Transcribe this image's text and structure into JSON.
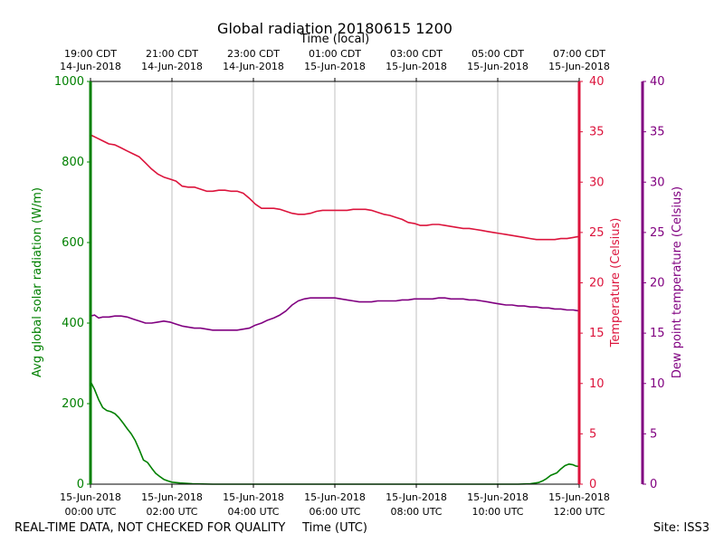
{
  "chart_data": {
    "type": "line",
    "title": "Global radiation 20180615 1200",
    "top_axis_label": "Time (local)",
    "xlabel": "Time (UTC)",
    "footer_left": "REAL-TIME DATA, NOT CHECKED FOR QUALITY",
    "footer_right": "Site: ISS3",
    "x_range_hours_utc": [
      0,
      12
    ],
    "top_ticks": [
      {
        "hour": 0,
        "line1": "19:00 CDT",
        "line2": "14-Jun-2018"
      },
      {
        "hour": 2,
        "line1": "21:00 CDT",
        "line2": "14-Jun-2018"
      },
      {
        "hour": 4,
        "line1": "23:00 CDT",
        "line2": "14-Jun-2018"
      },
      {
        "hour": 6,
        "line1": "01:00 CDT",
        "line2": "15-Jun-2018"
      },
      {
        "hour": 8,
        "line1": "03:00 CDT",
        "line2": "15-Jun-2018"
      },
      {
        "hour": 10,
        "line1": "05:00 CDT",
        "line2": "15-Jun-2018"
      },
      {
        "hour": 12,
        "line1": "07:00 CDT",
        "line2": "15-Jun-2018"
      }
    ],
    "bottom_ticks": [
      {
        "hour": 0,
        "line1": "15-Jun-2018",
        "line2": "00:00 UTC"
      },
      {
        "hour": 2,
        "line1": "15-Jun-2018",
        "line2": "02:00 UTC"
      },
      {
        "hour": 4,
        "line1": "15-Jun-2018",
        "line2": "04:00 UTC"
      },
      {
        "hour": 6,
        "line1": "15-Jun-2018",
        "line2": "06:00 UTC"
      },
      {
        "hour": 8,
        "line1": "15-Jun-2018",
        "line2": "08:00 UTC"
      },
      {
        "hour": 10,
        "line1": "15-Jun-2018",
        "line2": "10:00 UTC"
      },
      {
        "hour": 12,
        "line1": "15-Jun-2018",
        "line2": "12:00 UTC"
      }
    ],
    "grid": "vertical",
    "axes": {
      "left": {
        "label": "Avg global solar radiation (W/m)",
        "color": "#008000",
        "ylim": [
          0,
          1000
        ],
        "ticks": [
          0,
          200,
          400,
          600,
          800,
          1000
        ]
      },
      "right": {
        "label": "Temperature (Celsius)",
        "color": "#dc143c",
        "ylim": [
          0,
          40
        ],
        "ticks": [
          0,
          5,
          10,
          15,
          20,
          25,
          30,
          35,
          40
        ]
      },
      "right2": {
        "label": "Dew point temperature (Celsius)",
        "color": "#800080",
        "ylim": [
          0,
          40
        ],
        "ticks": [
          0,
          5,
          10,
          15,
          20,
          25,
          30,
          35,
          40
        ]
      }
    },
    "series": [
      {
        "axis": "left",
        "color": "#008000",
        "points": [
          [
            0,
            255
          ],
          [
            0.1,
            235
          ],
          [
            0.2,
            210
          ],
          [
            0.3,
            190
          ],
          [
            0.4,
            183
          ],
          [
            0.5,
            180
          ],
          [
            0.6,
            175
          ],
          [
            0.7,
            165
          ],
          [
            0.8,
            152
          ],
          [
            0.9,
            138
          ],
          [
            1.0,
            125
          ],
          [
            1.1,
            108
          ],
          [
            1.2,
            85
          ],
          [
            1.3,
            60
          ],
          [
            1.4,
            54
          ],
          [
            1.5,
            40
          ],
          [
            1.6,
            27
          ],
          [
            1.7,
            19
          ],
          [
            1.8,
            12
          ],
          [
            1.9,
            8
          ],
          [
            2.0,
            5
          ],
          [
            2.2,
            3
          ],
          [
            2.5,
            1
          ],
          [
            3,
            0
          ],
          [
            10.5,
            0
          ],
          [
            10.8,
            1
          ],
          [
            11.0,
            4
          ],
          [
            11.1,
            8
          ],
          [
            11.2,
            14
          ],
          [
            11.3,
            22
          ],
          [
            11.45,
            28
          ],
          [
            11.55,
            38
          ],
          [
            11.65,
            46
          ],
          [
            11.75,
            50
          ],
          [
            11.85,
            48
          ],
          [
            11.92,
            45
          ],
          [
            12,
            44
          ]
        ]
      },
      {
        "axis": "right",
        "color": "#dc143c",
        "points": [
          [
            0,
            34.7
          ],
          [
            0.15,
            34.4
          ],
          [
            0.3,
            34.1
          ],
          [
            0.45,
            33.8
          ],
          [
            0.6,
            33.7
          ],
          [
            0.75,
            33.4
          ],
          [
            0.9,
            33.1
          ],
          [
            1.05,
            32.8
          ],
          [
            1.2,
            32.5
          ],
          [
            1.35,
            31.9
          ],
          [
            1.5,
            31.3
          ],
          [
            1.65,
            30.8
          ],
          [
            1.8,
            30.5
          ],
          [
            1.95,
            30.3
          ],
          [
            2.1,
            30.1
          ],
          [
            2.25,
            29.6
          ],
          [
            2.4,
            29.5
          ],
          [
            2.55,
            29.5
          ],
          [
            2.7,
            29.3
          ],
          [
            2.85,
            29.1
          ],
          [
            3.0,
            29.1
          ],
          [
            3.15,
            29.2
          ],
          [
            3.3,
            29.2
          ],
          [
            3.45,
            29.1
          ],
          [
            3.6,
            29.1
          ],
          [
            3.75,
            28.9
          ],
          [
            3.9,
            28.4
          ],
          [
            4.05,
            27.8
          ],
          [
            4.2,
            27.4
          ],
          [
            4.35,
            27.4
          ],
          [
            4.5,
            27.4
          ],
          [
            4.65,
            27.3
          ],
          [
            4.8,
            27.1
          ],
          [
            4.95,
            26.9
          ],
          [
            5.1,
            26.8
          ],
          [
            5.25,
            26.8
          ],
          [
            5.4,
            26.9
          ],
          [
            5.55,
            27.1
          ],
          [
            5.7,
            27.2
          ],
          [
            5.85,
            27.2
          ],
          [
            6.0,
            27.2
          ],
          [
            6.15,
            27.2
          ],
          [
            6.3,
            27.2
          ],
          [
            6.45,
            27.3
          ],
          [
            6.6,
            27.3
          ],
          [
            6.75,
            27.3
          ],
          [
            6.9,
            27.2
          ],
          [
            7.05,
            27.0
          ],
          [
            7.2,
            26.8
          ],
          [
            7.35,
            26.7
          ],
          [
            7.5,
            26.5
          ],
          [
            7.65,
            26.3
          ],
          [
            7.8,
            26.0
          ],
          [
            7.95,
            25.9
          ],
          [
            8.1,
            25.7
          ],
          [
            8.25,
            25.7
          ],
          [
            8.4,
            25.8
          ],
          [
            8.55,
            25.8
          ],
          [
            8.7,
            25.7
          ],
          [
            8.85,
            25.6
          ],
          [
            9.0,
            25.5
          ],
          [
            9.15,
            25.4
          ],
          [
            9.3,
            25.4
          ],
          [
            9.45,
            25.3
          ],
          [
            9.6,
            25.2
          ],
          [
            9.75,
            25.1
          ],
          [
            9.9,
            25.0
          ],
          [
            10.05,
            24.9
          ],
          [
            10.2,
            24.8
          ],
          [
            10.35,
            24.7
          ],
          [
            10.5,
            24.6
          ],
          [
            10.65,
            24.5
          ],
          [
            10.8,
            24.4
          ],
          [
            10.95,
            24.3
          ],
          [
            11.1,
            24.3
          ],
          [
            11.25,
            24.3
          ],
          [
            11.4,
            24.3
          ],
          [
            11.55,
            24.4
          ],
          [
            11.7,
            24.4
          ],
          [
            11.85,
            24.5
          ],
          [
            12,
            24.6
          ]
        ]
      },
      {
        "axis": "right2",
        "color": "#800080",
        "points": [
          [
            0,
            16.7
          ],
          [
            0.1,
            16.8
          ],
          [
            0.2,
            16.5
          ],
          [
            0.3,
            16.6
          ],
          [
            0.45,
            16.6
          ],
          [
            0.6,
            16.7
          ],
          [
            0.75,
            16.7
          ],
          [
            0.9,
            16.6
          ],
          [
            1.05,
            16.4
          ],
          [
            1.2,
            16.2
          ],
          [
            1.35,
            16.0
          ],
          [
            1.5,
            16.0
          ],
          [
            1.65,
            16.1
          ],
          [
            1.8,
            16.2
          ],
          [
            1.95,
            16.1
          ],
          [
            2.1,
            15.9
          ],
          [
            2.25,
            15.7
          ],
          [
            2.4,
            15.6
          ],
          [
            2.55,
            15.5
          ],
          [
            2.7,
            15.5
          ],
          [
            2.85,
            15.4
          ],
          [
            3.0,
            15.3
          ],
          [
            3.15,
            15.3
          ],
          [
            3.3,
            15.3
          ],
          [
            3.45,
            15.3
          ],
          [
            3.6,
            15.3
          ],
          [
            3.75,
            15.4
          ],
          [
            3.9,
            15.5
          ],
          [
            4.05,
            15.8
          ],
          [
            4.2,
            16.0
          ],
          [
            4.35,
            16.3
          ],
          [
            4.5,
            16.5
          ],
          [
            4.65,
            16.8
          ],
          [
            4.8,
            17.2
          ],
          [
            4.95,
            17.8
          ],
          [
            5.1,
            18.2
          ],
          [
            5.25,
            18.4
          ],
          [
            5.4,
            18.5
          ],
          [
            5.55,
            18.5
          ],
          [
            5.7,
            18.5
          ],
          [
            5.85,
            18.5
          ],
          [
            6.0,
            18.5
          ],
          [
            6.15,
            18.4
          ],
          [
            6.3,
            18.3
          ],
          [
            6.45,
            18.2
          ],
          [
            6.6,
            18.1
          ],
          [
            6.75,
            18.1
          ],
          [
            6.9,
            18.1
          ],
          [
            7.05,
            18.2
          ],
          [
            7.2,
            18.2
          ],
          [
            7.35,
            18.2
          ],
          [
            7.5,
            18.2
          ],
          [
            7.65,
            18.3
          ],
          [
            7.8,
            18.3
          ],
          [
            7.95,
            18.4
          ],
          [
            8.1,
            18.4
          ],
          [
            8.25,
            18.4
          ],
          [
            8.4,
            18.4
          ],
          [
            8.55,
            18.5
          ],
          [
            8.7,
            18.5
          ],
          [
            8.85,
            18.4
          ],
          [
            9.0,
            18.4
          ],
          [
            9.15,
            18.4
          ],
          [
            9.3,
            18.3
          ],
          [
            9.45,
            18.3
          ],
          [
            9.6,
            18.2
          ],
          [
            9.75,
            18.1
          ],
          [
            9.9,
            18.0
          ],
          [
            10.05,
            17.9
          ],
          [
            10.2,
            17.8
          ],
          [
            10.35,
            17.8
          ],
          [
            10.5,
            17.7
          ],
          [
            10.65,
            17.7
          ],
          [
            10.8,
            17.6
          ],
          [
            10.95,
            17.6
          ],
          [
            11.1,
            17.5
          ],
          [
            11.25,
            17.5
          ],
          [
            11.4,
            17.4
          ],
          [
            11.55,
            17.4
          ],
          [
            11.7,
            17.3
          ],
          [
            11.85,
            17.3
          ],
          [
            12,
            17.2
          ]
        ]
      }
    ]
  }
}
